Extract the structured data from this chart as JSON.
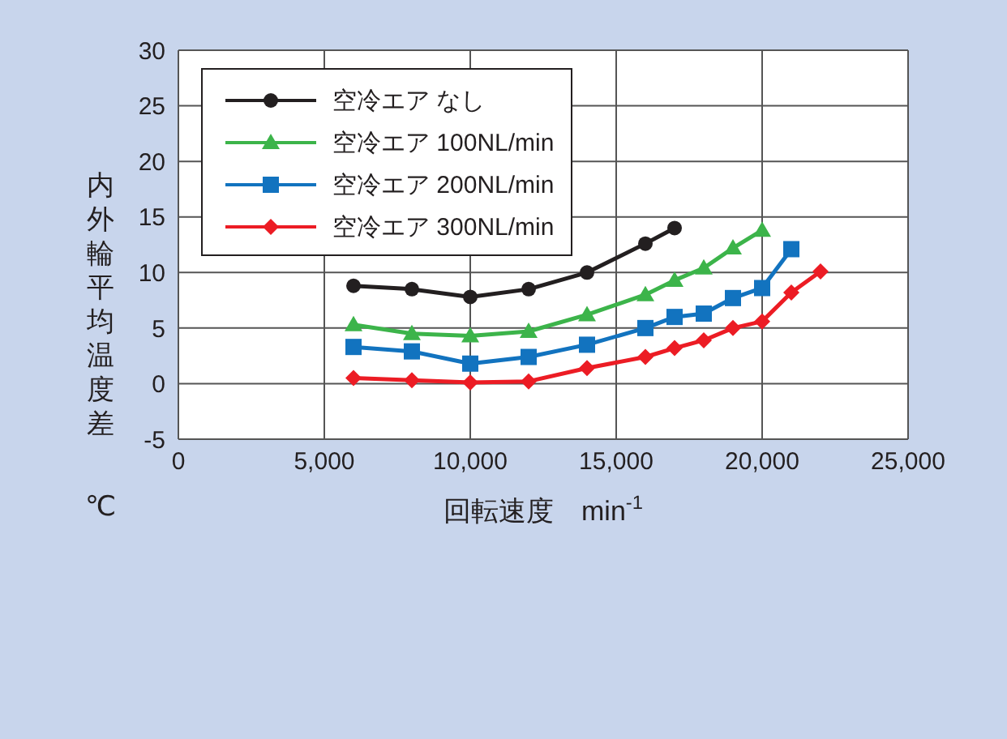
{
  "chart_data": {
    "type": "line",
    "xlabel": "回転速度　min$^{-1}$",
    "ylabel": "内外輪平均温度差 ℃",
    "xlim": [
      0,
      25000
    ],
    "xticks": [
      {
        "value": 0,
        "label": "0"
      },
      {
        "value": 5000,
        "label": "5,000"
      },
      {
        "value": 10000,
        "label": "10,000"
      },
      {
        "value": 15000,
        "label": "15,000"
      },
      {
        "value": 20000,
        "label": "20,000"
      },
      {
        "value": 25000,
        "label": "25,000"
      }
    ],
    "ylim": [
      -5,
      30
    ],
    "yticks": [
      -5,
      0,
      5,
      10,
      15,
      20,
      25,
      30
    ],
    "grid": true,
    "legend": "top left",
    "line_style": "solid",
    "series": [
      {
        "name": "空冷エア なし",
        "color": "#231f20",
        "marker": "circle",
        "x": [
          6000,
          8000,
          10000,
          12000,
          14000,
          16000,
          17000
        ],
        "values": [
          8.8,
          8.5,
          7.8,
          8.5,
          10,
          12.6,
          14
        ]
      },
      {
        "name": "空冷エア 100NL/min",
        "color": "#3cb44a",
        "marker": "triangle",
        "x": [
          6000,
          8000,
          10000,
          12000,
          14000,
          16000,
          17000,
          18000,
          19000,
          20000
        ],
        "values": [
          5.3,
          4.5,
          4.3,
          4.7,
          6.2,
          8,
          9.3,
          10.4,
          12.2,
          13.8
        ]
      },
      {
        "name": "空冷エア 200NL/min",
        "color": "#1273bf",
        "marker": "square",
        "x": [
          6000,
          8000,
          10000,
          12000,
          14000,
          16000,
          17000,
          18000,
          19000,
          20000,
          21000
        ],
        "values": [
          3.3,
          2.9,
          1.8,
          2.4,
          3.5,
          5,
          6,
          6.3,
          7.7,
          8.6,
          12.1
        ]
      },
      {
        "name": "空冷エア 300NL/min",
        "color": "#ec1c24",
        "marker": "diamond",
        "x": [
          6000,
          8000,
          10000,
          12000,
          14000,
          16000,
          17000,
          18000,
          19000,
          20000,
          21000,
          22000
        ],
        "values": [
          0.5,
          0.3,
          0.1,
          0.2,
          1.4,
          2.4,
          3.2,
          3.9,
          5,
          5.6,
          8.2,
          10.1
        ]
      }
    ]
  }
}
